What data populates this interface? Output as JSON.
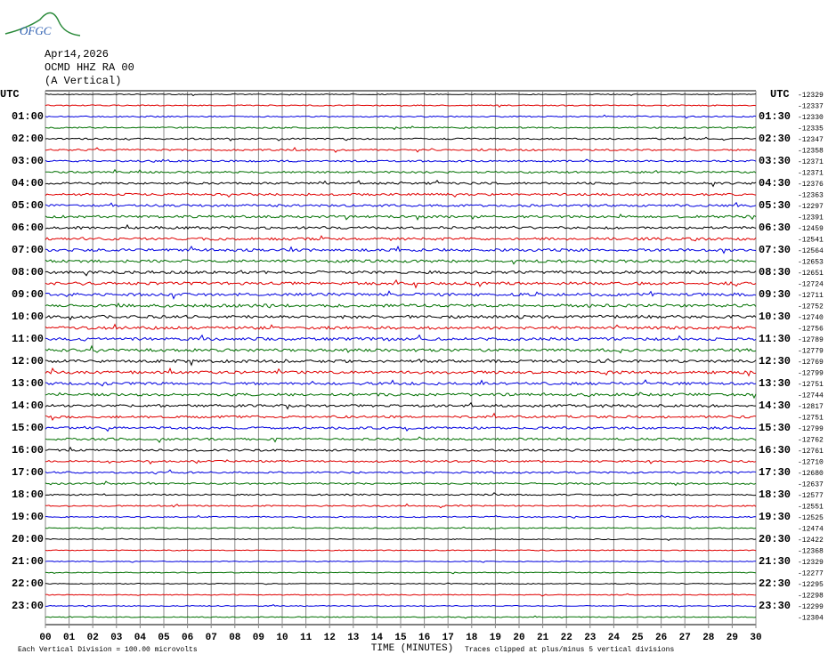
{
  "logo": "OFGC",
  "header": {
    "date": "Apr14,2026",
    "station": "OCMD HHZ RA 00",
    "component": "(A Vertical)"
  },
  "axes": {
    "left_title": "UTC",
    "right_title": "UTC",
    "left_labels": [
      "01:00",
      "02:00",
      "03:00",
      "04:00",
      "05:00",
      "06:00",
      "07:00",
      "08:00",
      "09:00",
      "10:00",
      "11:00",
      "12:00",
      "13:00",
      "14:00",
      "15:00",
      "16:00",
      "17:00",
      "18:00",
      "19:00",
      "20:00",
      "21:00",
      "22:00",
      "23:00"
    ],
    "right_labels": [
      "01:30",
      "02:30",
      "03:30",
      "04:30",
      "05:30",
      "06:30",
      "07:30",
      "08:30",
      "09:30",
      "10:30",
      "11:30",
      "12:30",
      "13:30",
      "14:30",
      "15:30",
      "16:30",
      "17:30",
      "18:30",
      "19:30",
      "20:30",
      "21:30",
      "22:30",
      "23:30"
    ],
    "trace_offsets": [
      "-12329",
      "-12337",
      "-12330",
      "-12335",
      "-12347",
      "-12358",
      "-12371",
      "-12371",
      "-12376",
      "-12363",
      "-12297",
      "-12391",
      "-12459",
      "-12541",
      "-12564",
      "-12653",
      "-12651",
      "-12724",
      "-12711",
      "-12752",
      "-12740",
      "-12756",
      "-12789",
      "-12779",
      "-12769",
      "-12799",
      "-12751",
      "-12744",
      "-12817",
      "-12751",
      "-12799",
      "-12762",
      "-12761",
      "-12710",
      "-12680",
      "-12637",
      "-12577",
      "-12551",
      "-12525",
      "-12474",
      "-12422",
      "-12368",
      "-12329",
      "-12277",
      "-12295",
      "-12298",
      "-12299",
      "-12304"
    ],
    "x_labels": [
      "00",
      "01",
      "02",
      "03",
      "04",
      "05",
      "06",
      "07",
      "08",
      "09",
      "10",
      "11",
      "12",
      "13",
      "14",
      "15",
      "16",
      "17",
      "18",
      "19",
      "20",
      "21",
      "22",
      "23",
      "24",
      "25",
      "26",
      "27",
      "28",
      "29",
      "30"
    ],
    "x_title": "TIME (MINUTES)"
  },
  "footer": {
    "scale": "Each Vertical Division =  100.00 microvolts",
    "clip": "Traces clipped at plus/minus 5 vertical divisions"
  }
}
